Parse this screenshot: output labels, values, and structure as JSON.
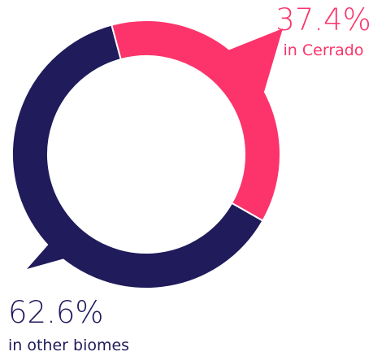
{
  "chart_data": {
    "type": "pie",
    "donut": true,
    "categories": [
      "in Cerrado",
      "in other biomes"
    ],
    "values": [
      37.4,
      62.6
    ],
    "value_labels": [
      "37.4%",
      "62.6%"
    ],
    "colors": [
      "#fc346b",
      "#201b5a"
    ],
    "legend": "none",
    "title": "",
    "xlabel": "",
    "ylabel": ""
  }
}
